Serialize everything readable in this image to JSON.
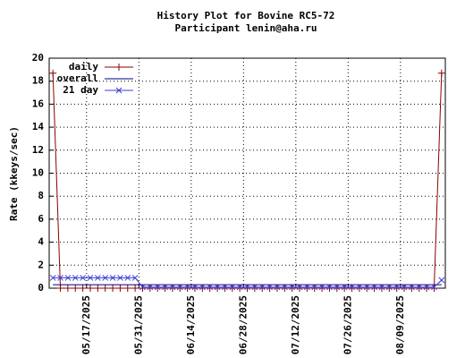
{
  "chart_data": {
    "type": "line",
    "title": "History Plot for Bovine RC5-72",
    "subtitle": "Participant lenin@aha.ru",
    "y_label": "Rate (kkeys/sec)",
    "x": [
      "2025-05-08",
      "2025-05-10",
      "2025-05-12",
      "2025-05-14",
      "2025-05-16",
      "2025-05-18",
      "2025-05-20",
      "2025-05-22",
      "2025-05-24",
      "2025-05-26",
      "2025-05-28",
      "2025-05-30",
      "2025-06-01",
      "2025-06-03",
      "2025-06-05",
      "2025-06-07",
      "2025-06-09",
      "2025-06-11",
      "2025-06-13",
      "2025-06-15",
      "2025-06-17",
      "2025-06-19",
      "2025-06-21",
      "2025-06-23",
      "2025-06-25",
      "2025-06-27",
      "2025-06-29",
      "2025-07-01",
      "2025-07-03",
      "2025-07-05",
      "2025-07-07",
      "2025-07-09",
      "2025-07-11",
      "2025-07-13",
      "2025-07-15",
      "2025-07-17",
      "2025-07-19",
      "2025-07-21",
      "2025-07-23",
      "2025-07-25",
      "2025-07-27",
      "2025-07-29",
      "2025-07-31",
      "2025-08-02",
      "2025-08-04",
      "2025-08-06",
      "2025-08-08",
      "2025-08-10",
      "2025-08-12",
      "2025-08-14",
      "2025-08-16",
      "2025-08-18",
      "2025-08-20"
    ],
    "series": [
      {
        "name": "daily",
        "color": "#8b0000",
        "marker": "plus",
        "values": [
          18.7,
          0,
          0,
          0,
          0,
          0,
          0,
          0,
          0,
          0,
          0,
          0,
          0,
          0,
          0,
          0,
          0,
          0,
          0,
          0,
          0,
          0,
          0,
          0,
          0,
          0,
          0,
          0,
          0,
          0,
          0,
          0,
          0,
          0,
          0,
          0,
          0,
          0,
          0,
          0,
          0,
          0,
          0,
          0,
          0,
          0,
          0,
          0,
          0,
          0,
          0,
          0,
          18.7
        ]
      },
      {
        "name": "overall",
        "color": "#000080",
        "marker": "none",
        "values": [
          0.3,
          0.3,
          0.3,
          0.3,
          0.3,
          0.3,
          0.3,
          0.3,
          0.3,
          0.3,
          0.3,
          0.3,
          0.3,
          0.3,
          0.3,
          0.3,
          0.3,
          0.3,
          0.3,
          0.3,
          0.3,
          0.3,
          0.3,
          0.3,
          0.3,
          0.3,
          0.3,
          0.3,
          0.3,
          0.3,
          0.3,
          0.3,
          0.3,
          0.3,
          0.3,
          0.3,
          0.3,
          0.3,
          0.3,
          0.3,
          0.3,
          0.3,
          0.3,
          0.3,
          0.3,
          0.3,
          0.3,
          0.3,
          0.3,
          0.3,
          0.3,
          0.3,
          0.3
        ]
      },
      {
        "name": "21 day",
        "color": "#3b3bd0",
        "marker": "cross",
        "values": [
          0.9,
          0.9,
          0.9,
          0.9,
          0.9,
          0.9,
          0.9,
          0.9,
          0.9,
          0.9,
          0.9,
          0.9,
          0.1,
          0.1,
          0.1,
          0.1,
          0.1,
          0.1,
          0.1,
          0.1,
          0.1,
          0.1,
          0.1,
          0.1,
          0.1,
          0.1,
          0.1,
          0.1,
          0.1,
          0.1,
          0.1,
          0.1,
          0.1,
          0.1,
          0.1,
          0.1,
          0.1,
          0.1,
          0.1,
          0.1,
          0.1,
          0.1,
          0.1,
          0.1,
          0.1,
          0.1,
          0.1,
          0.1,
          0.1,
          0.1,
          0.1,
          0.1,
          0.7
        ]
      }
    ],
    "xlim": [
      "2025-05-07",
      "2025-08-21"
    ],
    "xticks": [
      {
        "value": "2025-05-17",
        "label": "05/17/2025"
      },
      {
        "value": "2025-05-31",
        "label": "05/31/2025"
      },
      {
        "value": "2025-06-14",
        "label": "06/14/2025"
      },
      {
        "value": "2025-06-28",
        "label": "06/28/2025"
      },
      {
        "value": "2025-07-12",
        "label": "07/12/2025"
      },
      {
        "value": "2025-07-26",
        "label": "07/26/2025"
      },
      {
        "value": "2025-08-09",
        "label": "08/09/2025"
      }
    ],
    "ylim": [
      0,
      20
    ],
    "yticks": [
      0,
      2,
      4,
      6,
      8,
      10,
      12,
      14,
      16,
      18,
      20
    ],
    "grid": true,
    "legend": "top-left"
  }
}
